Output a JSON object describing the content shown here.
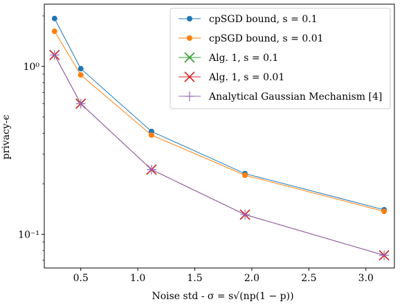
{
  "chart_data": {
    "type": "line",
    "xlabel": "Noise std - σ = s√(np(1 − p))",
    "ylabel": "privacy-ϵ",
    "x_ticks": [
      0.5,
      1.0,
      1.5,
      2.0,
      2.5,
      3.0
    ],
    "x_tick_labels": [
      "0.5",
      "1.0",
      "1.5",
      "2.0",
      "2.5",
      "3.0"
    ],
    "xlim": [
      0.18,
      3.25
    ],
    "y_scale": "log",
    "ylim": [
      0.063,
      2.35
    ],
    "y_ticks": [
      0.1,
      1.0
    ],
    "y_tick_labels": [
      "10⁻¹",
      "10⁰"
    ],
    "grid": false,
    "legend_position": "top-right",
    "x": [
      0.27,
      0.5,
      1.12,
      1.94,
      3.16
    ],
    "series": [
      {
        "name": "cpSGD bound, s = 0.1",
        "values": [
          1.93,
          0.97,
          0.41,
          0.23,
          0.14
        ],
        "color": "#1f77b4",
        "marker": "circle"
      },
      {
        "name": "cpSGD bound, s = 0.01",
        "values": [
          1.62,
          0.89,
          0.39,
          0.225,
          0.137
        ],
        "color": "#ff7f0e",
        "marker": "circle"
      },
      {
        "name": "Alg. 1, s = 0.1",
        "values": [
          1.17,
          0.6,
          0.243,
          0.131,
          0.075
        ],
        "color": "#2ca02c",
        "marker": "x"
      },
      {
        "name": "Alg. 1, s = 0.01",
        "values": [
          1.17,
          0.6,
          0.243,
          0.131,
          0.075
        ],
        "color": "#d62728",
        "marker": "x"
      },
      {
        "name": "Analytical Gaussian Mechanism [4]",
        "values": [
          1.17,
          0.6,
          0.243,
          0.131,
          0.075
        ],
        "color": "#9467bd",
        "marker": "plus"
      }
    ]
  }
}
